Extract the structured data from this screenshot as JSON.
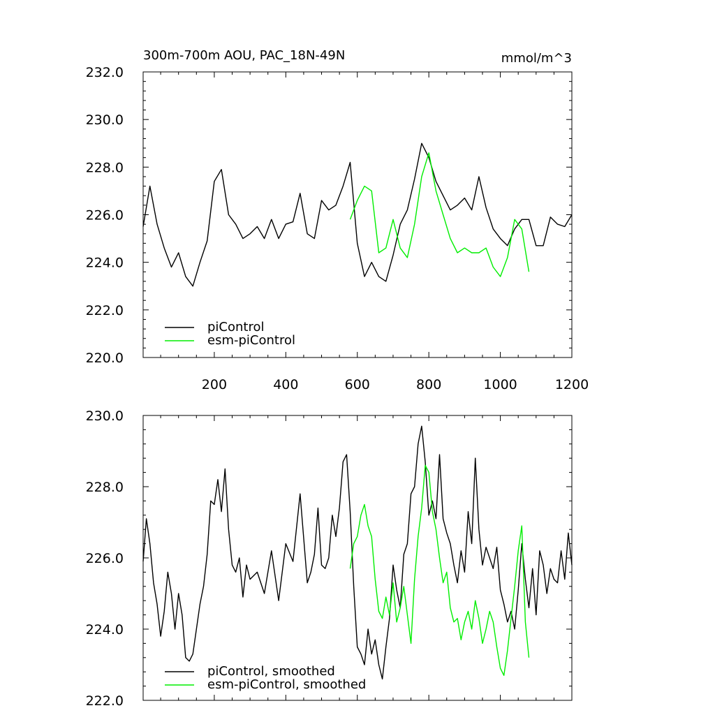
{
  "colors": {
    "piControl": "#000000",
    "esm_piControl": "#00ee00"
  },
  "chart_data": [
    {
      "type": "line",
      "title": "300m-700m AOU, PAC_18N-49N",
      "units": "mmol/m^3",
      "xlim": [
        1,
        1200
      ],
      "ylim": [
        220,
        232
      ],
      "xticks": [
        200,
        400,
        600,
        800,
        1000,
        1200
      ],
      "xtick_labels": [
        "200",
        "400",
        "600",
        "800",
        "1000",
        "1200"
      ],
      "yticks": [
        220,
        222,
        224,
        226,
        228,
        230,
        232
      ],
      "ytick_labels": [
        "220.0",
        "222.0",
        "224.0",
        "226.0",
        "228.0",
        "230.0",
        "232.0"
      ],
      "legend_position": "bottom-left",
      "series": [
        {
          "name": "piControl",
          "color": "#000000",
          "x": [
            1,
            20,
            40,
            60,
            80,
            100,
            120,
            140,
            160,
            180,
            200,
            220,
            240,
            260,
            280,
            300,
            320,
            340,
            360,
            380,
            400,
            420,
            440,
            460,
            480,
            500,
            520,
            540,
            560,
            580,
            600,
            620,
            640,
            660,
            680,
            700,
            720,
            740,
            760,
            780,
            800,
            820,
            840,
            860,
            880,
            900,
            920,
            940,
            960,
            980,
            1000,
            1020,
            1040,
            1060,
            1080,
            1100,
            1120,
            1140,
            1160,
            1180,
            1200
          ],
          "y": [
            225.5,
            227.2,
            225.6,
            224.6,
            223.8,
            224.4,
            223.4,
            223.0,
            224.0,
            224.9,
            227.4,
            227.9,
            226.0,
            225.6,
            225.0,
            225.2,
            225.5,
            225.0,
            225.8,
            225.0,
            225.6,
            225.7,
            226.9,
            225.2,
            225.0,
            226.6,
            226.2,
            226.4,
            227.2,
            228.2,
            224.8,
            223.4,
            224.0,
            223.4,
            223.2,
            224.3,
            225.6,
            226.2,
            227.5,
            229.0,
            228.4,
            227.4,
            226.8,
            226.2,
            226.4,
            226.7,
            226.2,
            227.6,
            226.3,
            225.4,
            225.0,
            224.7,
            225.4,
            225.8,
            225.8,
            224.7,
            224.7,
            225.9,
            225.6,
            225.5,
            226.0
          ]
        },
        {
          "name": "esm-piControl",
          "color": "#00ee00",
          "x": [
            580,
            600,
            620,
            640,
            660,
            680,
            700,
            720,
            740,
            760,
            780,
            800,
            820,
            840,
            860,
            880,
            900,
            920,
            940,
            960,
            980,
            1000,
            1020,
            1040,
            1060,
            1080
          ],
          "y": [
            225.8,
            226.6,
            227.2,
            227.0,
            224.4,
            224.6,
            225.8,
            224.6,
            224.2,
            225.6,
            227.6,
            228.6,
            227.0,
            226.0,
            225.0,
            224.4,
            224.6,
            224.4,
            224.4,
            224.6,
            223.8,
            223.4,
            224.2,
            225.8,
            225.4,
            223.6
          ]
        }
      ]
    },
    {
      "type": "line",
      "title": "",
      "xlim": [
        1,
        1200
      ],
      "ylim": [
        222,
        230
      ],
      "xticks": [
        200,
        400,
        600,
        800,
        1000,
        1200
      ],
      "xtick_labels": [],
      "yticks": [
        222,
        224,
        226,
        228,
        230
      ],
      "ytick_labels": [
        "222.0",
        "224.0",
        "226.0",
        "228.0",
        "230.0"
      ],
      "legend_position": "bottom-left",
      "series": [
        {
          "name": "piControl, smoothed",
          "color": "#000000",
          "x": [
            1,
            10,
            20,
            30,
            40,
            50,
            60,
            70,
            80,
            90,
            100,
            110,
            120,
            130,
            140,
            150,
            160,
            170,
            180,
            190,
            200,
            210,
            220,
            230,
            240,
            250,
            260,
            270,
            280,
            290,
            300,
            320,
            340,
            360,
            380,
            400,
            420,
            440,
            460,
            470,
            480,
            490,
            500,
            510,
            520,
            530,
            540,
            550,
            560,
            570,
            580,
            590,
            600,
            610,
            620,
            630,
            640,
            650,
            660,
            670,
            680,
            690,
            700,
            710,
            720,
            730,
            740,
            750,
            760,
            770,
            780,
            790,
            800,
            810,
            820,
            830,
            840,
            850,
            860,
            870,
            880,
            890,
            900,
            910,
            920,
            930,
            940,
            950,
            960,
            970,
            980,
            990,
            1000,
            1010,
            1020,
            1030,
            1040,
            1050,
            1060,
            1070,
            1080,
            1090,
            1100,
            1110,
            1120,
            1130,
            1140,
            1150,
            1160,
            1170,
            1180,
            1190,
            1200
          ],
          "y": [
            225.9,
            227.1,
            226.4,
            225.3,
            224.7,
            223.8,
            224.5,
            225.6,
            225.0,
            224.0,
            225.0,
            224.4,
            223.2,
            223.1,
            223.3,
            224.0,
            224.7,
            225.2,
            226.1,
            227.6,
            227.5,
            228.2,
            227.3,
            228.5,
            226.8,
            225.8,
            225.6,
            226.0,
            224.9,
            225.8,
            225.4,
            225.6,
            225.0,
            226.2,
            224.8,
            226.4,
            225.9,
            227.8,
            225.3,
            225.6,
            226.1,
            227.4,
            225.8,
            225.7,
            226.0,
            227.2,
            226.6,
            227.4,
            228.7,
            228.9,
            227.3,
            225.2,
            223.5,
            223.3,
            223.0,
            224.0,
            223.3,
            223.7,
            223.0,
            222.6,
            223.5,
            224.3,
            225.8,
            225.1,
            224.6,
            226.1,
            226.4,
            227.8,
            228.0,
            229.2,
            229.7,
            228.7,
            227.2,
            227.6,
            227.1,
            228.9,
            227.1,
            226.7,
            226.4,
            225.8,
            225.3,
            226.2,
            225.6,
            227.3,
            226.4,
            228.8,
            226.8,
            225.8,
            226.3,
            226.0,
            225.7,
            226.3,
            225.1,
            224.7,
            224.2,
            224.5,
            224.0,
            225.1,
            226.4,
            225.4,
            224.6,
            225.7,
            224.4,
            226.2,
            225.8,
            225.0,
            225.7,
            225.4,
            225.3,
            226.2,
            225.4,
            226.7,
            225.8
          ]
        },
        {
          "name": "esm-piControl, smoothed",
          "color": "#00ee00",
          "x": [
            580,
            590,
            600,
            610,
            620,
            630,
            640,
            650,
            660,
            670,
            680,
            690,
            700,
            710,
            720,
            730,
            740,
            750,
            760,
            770,
            780,
            790,
            800,
            810,
            820,
            830,
            840,
            850,
            860,
            870,
            880,
            890,
            900,
            910,
            920,
            930,
            940,
            950,
            960,
            970,
            980,
            990,
            1000,
            1010,
            1020,
            1030,
            1040,
            1050,
            1060,
            1070,
            1080
          ],
          "y": [
            225.7,
            226.4,
            226.6,
            227.2,
            227.5,
            226.9,
            226.6,
            225.4,
            224.5,
            224.3,
            224.9,
            224.4,
            225.3,
            224.2,
            224.6,
            225.2,
            224.4,
            223.6,
            225.4,
            226.6,
            227.4,
            228.6,
            228.4,
            227.3,
            226.8,
            226.0,
            225.3,
            225.6,
            224.6,
            224.2,
            224.3,
            223.7,
            224.2,
            224.5,
            224.0,
            224.8,
            224.3,
            223.6,
            224.0,
            224.5,
            224.2,
            223.5,
            222.9,
            222.7,
            223.4,
            224.3,
            225.2,
            226.2,
            226.9,
            224.2,
            223.2
          ]
        }
      ]
    }
  ]
}
